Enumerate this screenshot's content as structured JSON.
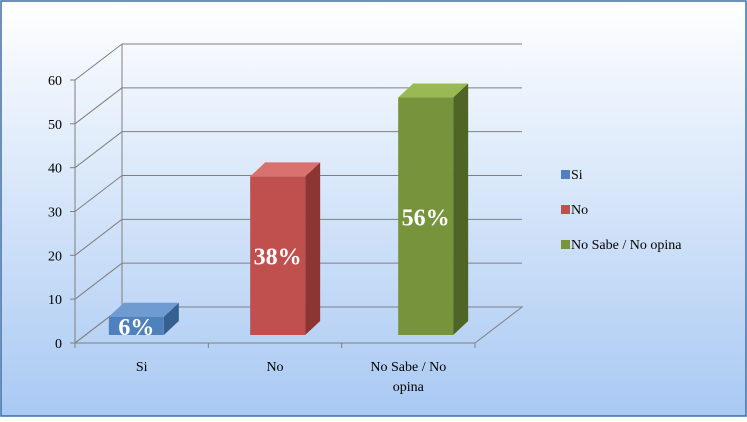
{
  "chart_data": {
    "type": "bar",
    "categories": [
      "Si",
      "No",
      "No Sabe / No opina"
    ],
    "category_tick_labels": [
      [
        "Si"
      ],
      [
        "No"
      ],
      [
        "No Sabe / No",
        "opina"
      ]
    ],
    "values": [
      6,
      38,
      56
    ],
    "data_labels": [
      "6%",
      "38%",
      "56%"
    ],
    "ylim": [
      0,
      60
    ],
    "yticks": [
      0,
      10,
      20,
      30,
      40,
      50,
      60
    ],
    "grid": true,
    "style": "3d-column",
    "legend": {
      "position": "right",
      "entries": [
        "Si",
        "No",
        "No Sabe / No opina"
      ]
    },
    "colors": {
      "front": [
        "#4f81bd",
        "#c0504d",
        "#77933c"
      ],
      "top": [
        "#6f9bd1",
        "#d9726f",
        "#98b954"
      ],
      "side": [
        "#35608f",
        "#8c3533",
        "#4f6526"
      ],
      "background_top": "#ffffff",
      "background_bottom": "#a9c9f3",
      "border": "#3c6ea5",
      "gridline": "#7f7f7f",
      "label_text": "#ffffff"
    }
  }
}
